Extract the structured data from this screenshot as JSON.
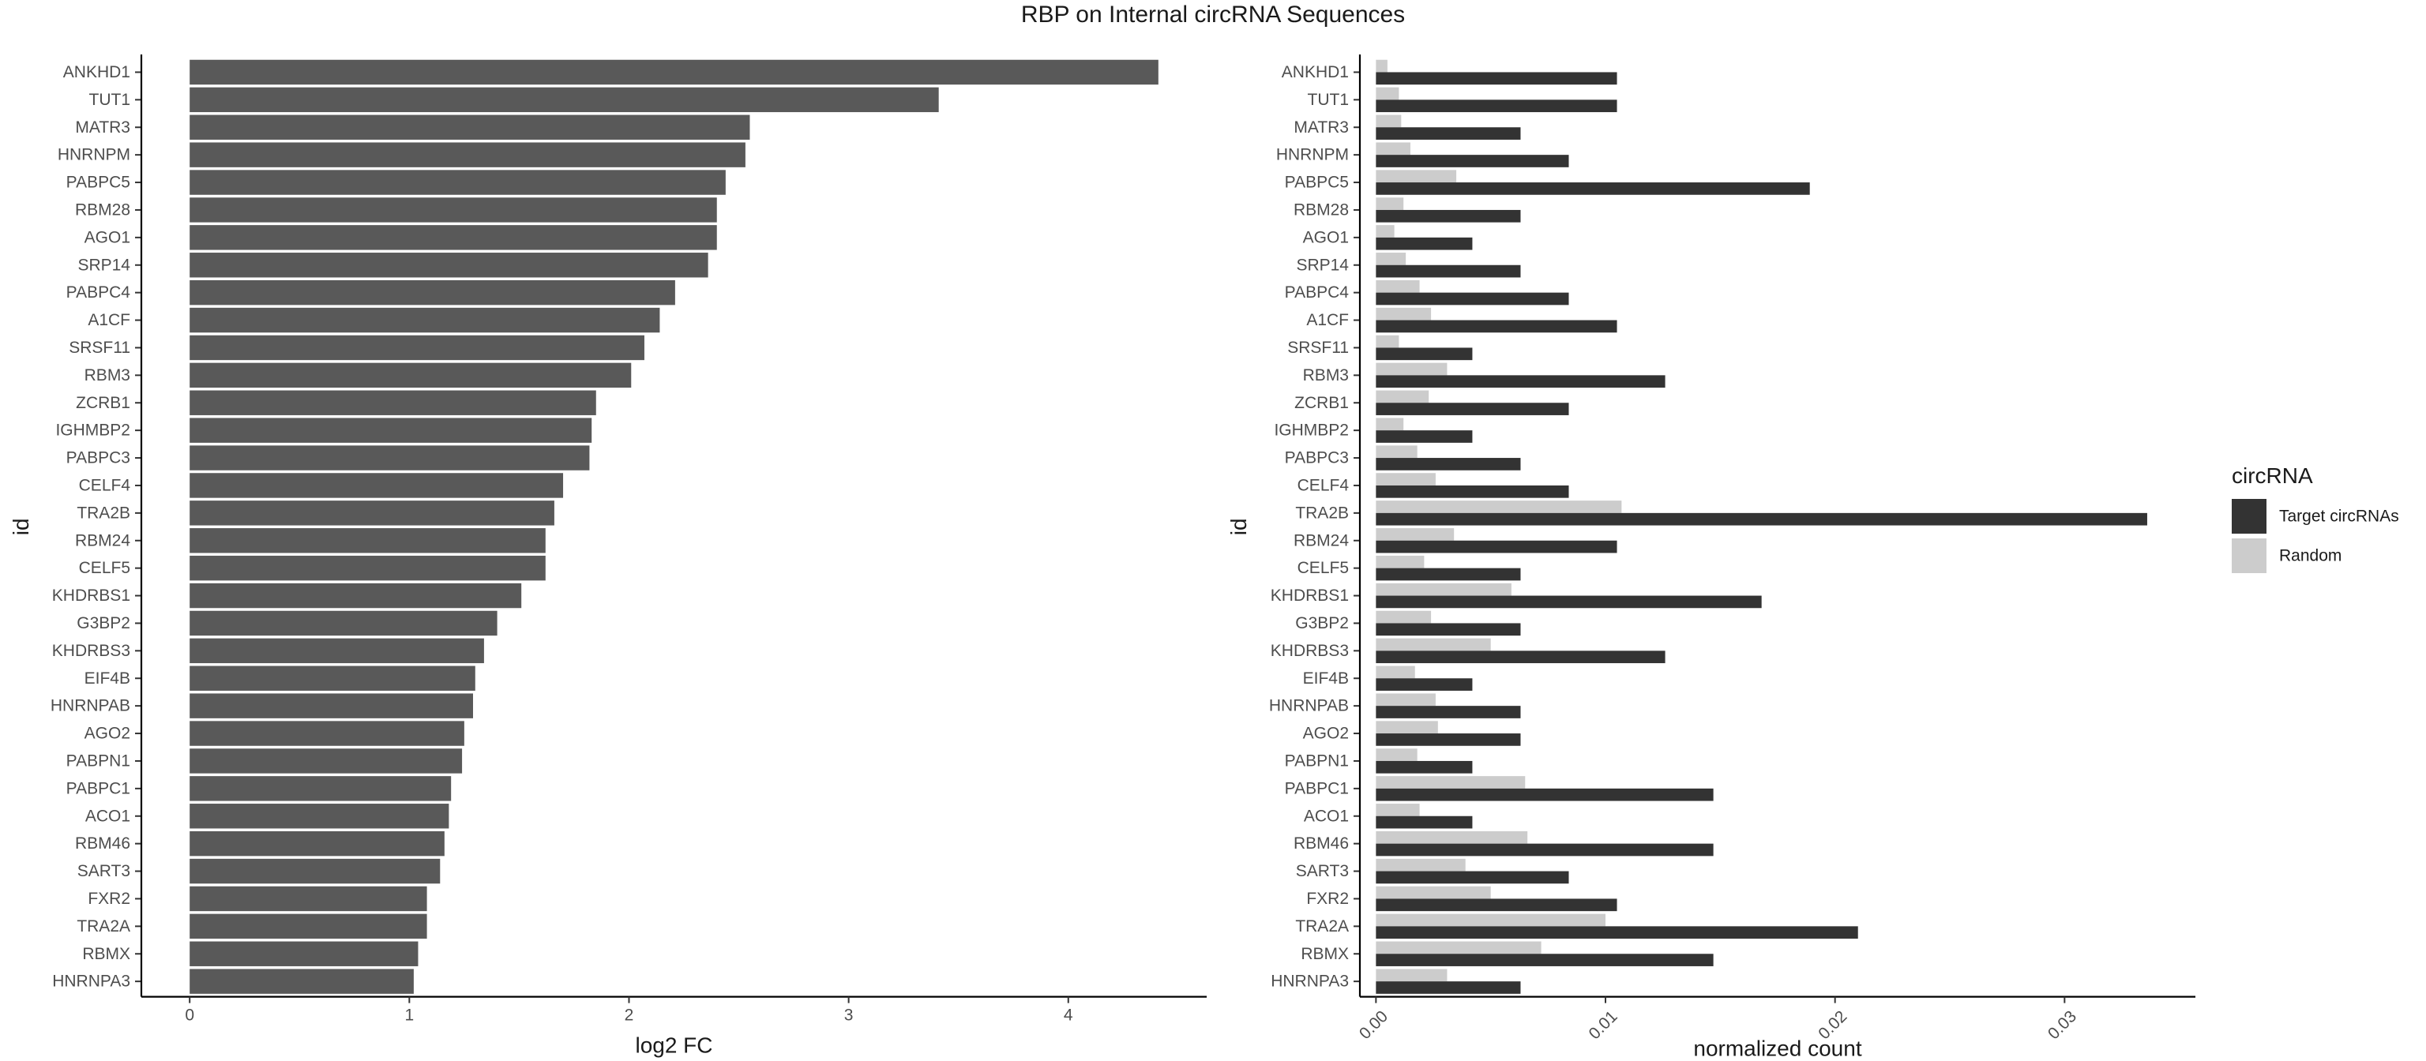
{
  "title": "RBP on Internal circRNA Sequences",
  "chart_data": [
    {
      "type": "bar",
      "orientation": "horizontal",
      "xlabel": "log2 FC",
      "ylabel": "id",
      "xlim": [
        -0.22,
        4.63
      ],
      "x_ticks": [
        0,
        1,
        2,
        3,
        4
      ],
      "grid": false,
      "bar_color": "#595959",
      "categories": [
        "ANKHD1",
        "TUT1",
        "MATR3",
        "HNRNPM",
        "PABPC5",
        "RBM28",
        "AGO1",
        "SRP14",
        "PABPC4",
        "A1CF",
        "SRSF11",
        "RBM3",
        "ZCRB1",
        "IGHMBP2",
        "PABPC3",
        "CELF4",
        "TRA2B",
        "RBM24",
        "CELF5",
        "KHDRBS1",
        "G3BP2",
        "KHDRBS3",
        "EIF4B",
        "HNRNPAB",
        "AGO2",
        "PABPN1",
        "PABPC1",
        "ACO1",
        "RBM46",
        "SART3",
        "FXR2",
        "TRA2A",
        "RBMX",
        "HNRNPA3"
      ],
      "values": [
        4.41,
        3.41,
        2.55,
        2.53,
        2.44,
        2.4,
        2.4,
        2.36,
        2.21,
        2.14,
        2.07,
        2.01,
        1.85,
        1.83,
        1.82,
        1.7,
        1.66,
        1.62,
        1.62,
        1.51,
        1.4,
        1.34,
        1.3,
        1.29,
        1.25,
        1.24,
        1.19,
        1.18,
        1.16,
        1.14,
        1.08,
        1.08,
        1.04,
        1.02
      ]
    },
    {
      "type": "bar",
      "orientation": "horizontal",
      "grouped": true,
      "xlabel": "normalized count",
      "ylabel": "id",
      "xlim": [
        -0.0007,
        0.0357
      ],
      "x_ticks": [
        0.0,
        0.01,
        0.02,
        0.03
      ],
      "x_tick_labels": [
        "0.00",
        "0.01",
        "0.02",
        "0.03"
      ],
      "grid": false,
      "legend": {
        "title": "circRNA",
        "position": "right"
      },
      "categories": [
        "ANKHD1",
        "TUT1",
        "MATR3",
        "HNRNPM",
        "PABPC5",
        "RBM28",
        "AGO1",
        "SRP14",
        "PABPC4",
        "A1CF",
        "SRSF11",
        "RBM3",
        "ZCRB1",
        "IGHMBP2",
        "PABPC3",
        "CELF4",
        "TRA2B",
        "RBM24",
        "CELF5",
        "KHDRBS1",
        "G3BP2",
        "KHDRBS3",
        "EIF4B",
        "HNRNPAB",
        "AGO2",
        "PABPN1",
        "PABPC1",
        "ACO1",
        "RBM46",
        "SART3",
        "FXR2",
        "TRA2A",
        "RBMX",
        "HNRNPA3"
      ],
      "series": [
        {
          "name": "Target circRNAs",
          "color": "#333333",
          "values": [
            0.0105,
            0.0105,
            0.0063,
            0.0084,
            0.0189,
            0.0063,
            0.0042,
            0.0063,
            0.0084,
            0.0105,
            0.0042,
            0.0126,
            0.0084,
            0.0042,
            0.0063,
            0.0084,
            0.0336,
            0.0105,
            0.0063,
            0.0168,
            0.0063,
            0.0126,
            0.0042,
            0.0063,
            0.0063,
            0.0042,
            0.0147,
            0.0042,
            0.0147,
            0.0084,
            0.0105,
            0.021,
            0.0147,
            0.0063
          ]
        },
        {
          "name": "Random",
          "color": "#cccccc",
          "values": [
            0.0005,
            0.001,
            0.0011,
            0.0015,
            0.0035,
            0.0012,
            0.0008,
            0.0013,
            0.0019,
            0.0024,
            0.001,
            0.0031,
            0.0023,
            0.0012,
            0.0018,
            0.0026,
            0.0107,
            0.0034,
            0.0021,
            0.0059,
            0.0024,
            0.005,
            0.0017,
            0.0026,
            0.0027,
            0.0018,
            0.0065,
            0.0019,
            0.0066,
            0.0039,
            0.005,
            0.01,
            0.0072,
            0.0031
          ]
        }
      ]
    }
  ]
}
